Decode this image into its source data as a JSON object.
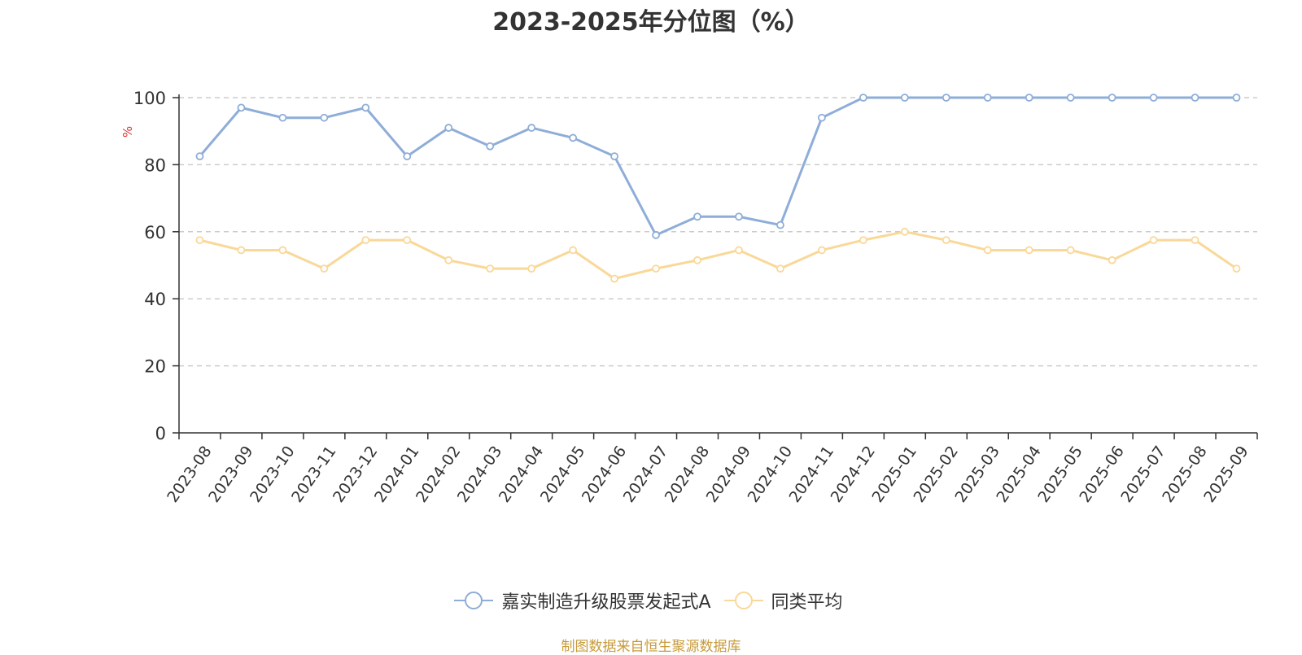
{
  "chart_data": {
    "type": "line",
    "title": "2023-2025年分位图（%）",
    "ylabel": "%",
    "xlabel": "",
    "ylim": [
      0,
      100
    ],
    "yticks": [
      0,
      20,
      40,
      60,
      80,
      100
    ],
    "grid": true,
    "legend_position": "bottom-center",
    "categories": [
      "2023-08",
      "2023-09",
      "2023-10",
      "2023-11",
      "2023-12",
      "2024-01",
      "2024-02",
      "2024-03",
      "2024-04",
      "2024-05",
      "2024-06",
      "2024-07",
      "2024-08",
      "2024-09",
      "2024-10",
      "2024-11",
      "2024-12",
      "2025-01",
      "2025-02",
      "2025-03",
      "2025-04",
      "2025-05",
      "2025-06",
      "2025-07",
      "2025-08",
      "2025-09"
    ],
    "series": [
      {
        "name": "嘉实制造升级股票发起式A",
        "color": "#8eadd8",
        "values": [
          82.5,
          97,
          94,
          94,
          97,
          82.5,
          91,
          85.5,
          91,
          88,
          82.5,
          59,
          64.5,
          64.5,
          62,
          94,
          100,
          100,
          100,
          100,
          100,
          100,
          100,
          100,
          100,
          100
        ]
      },
      {
        "name": "同类平均",
        "color": "#f9d898",
        "values": [
          57.5,
          54.5,
          54.5,
          49,
          57.5,
          57.5,
          51.5,
          49,
          49,
          54.5,
          46,
          49,
          51.5,
          54.5,
          49,
          54.5,
          57.5,
          60,
          57.5,
          54.5,
          54.5,
          54.5,
          51.5,
          57.5,
          57.5,
          49
        ]
      }
    ]
  },
  "source_text": "制图数据来自恒生聚源数据库",
  "colors": {
    "axis": "#333333",
    "grid": "#cccccc",
    "ylabel": "#e03030",
    "source": "#c79b3b"
  }
}
